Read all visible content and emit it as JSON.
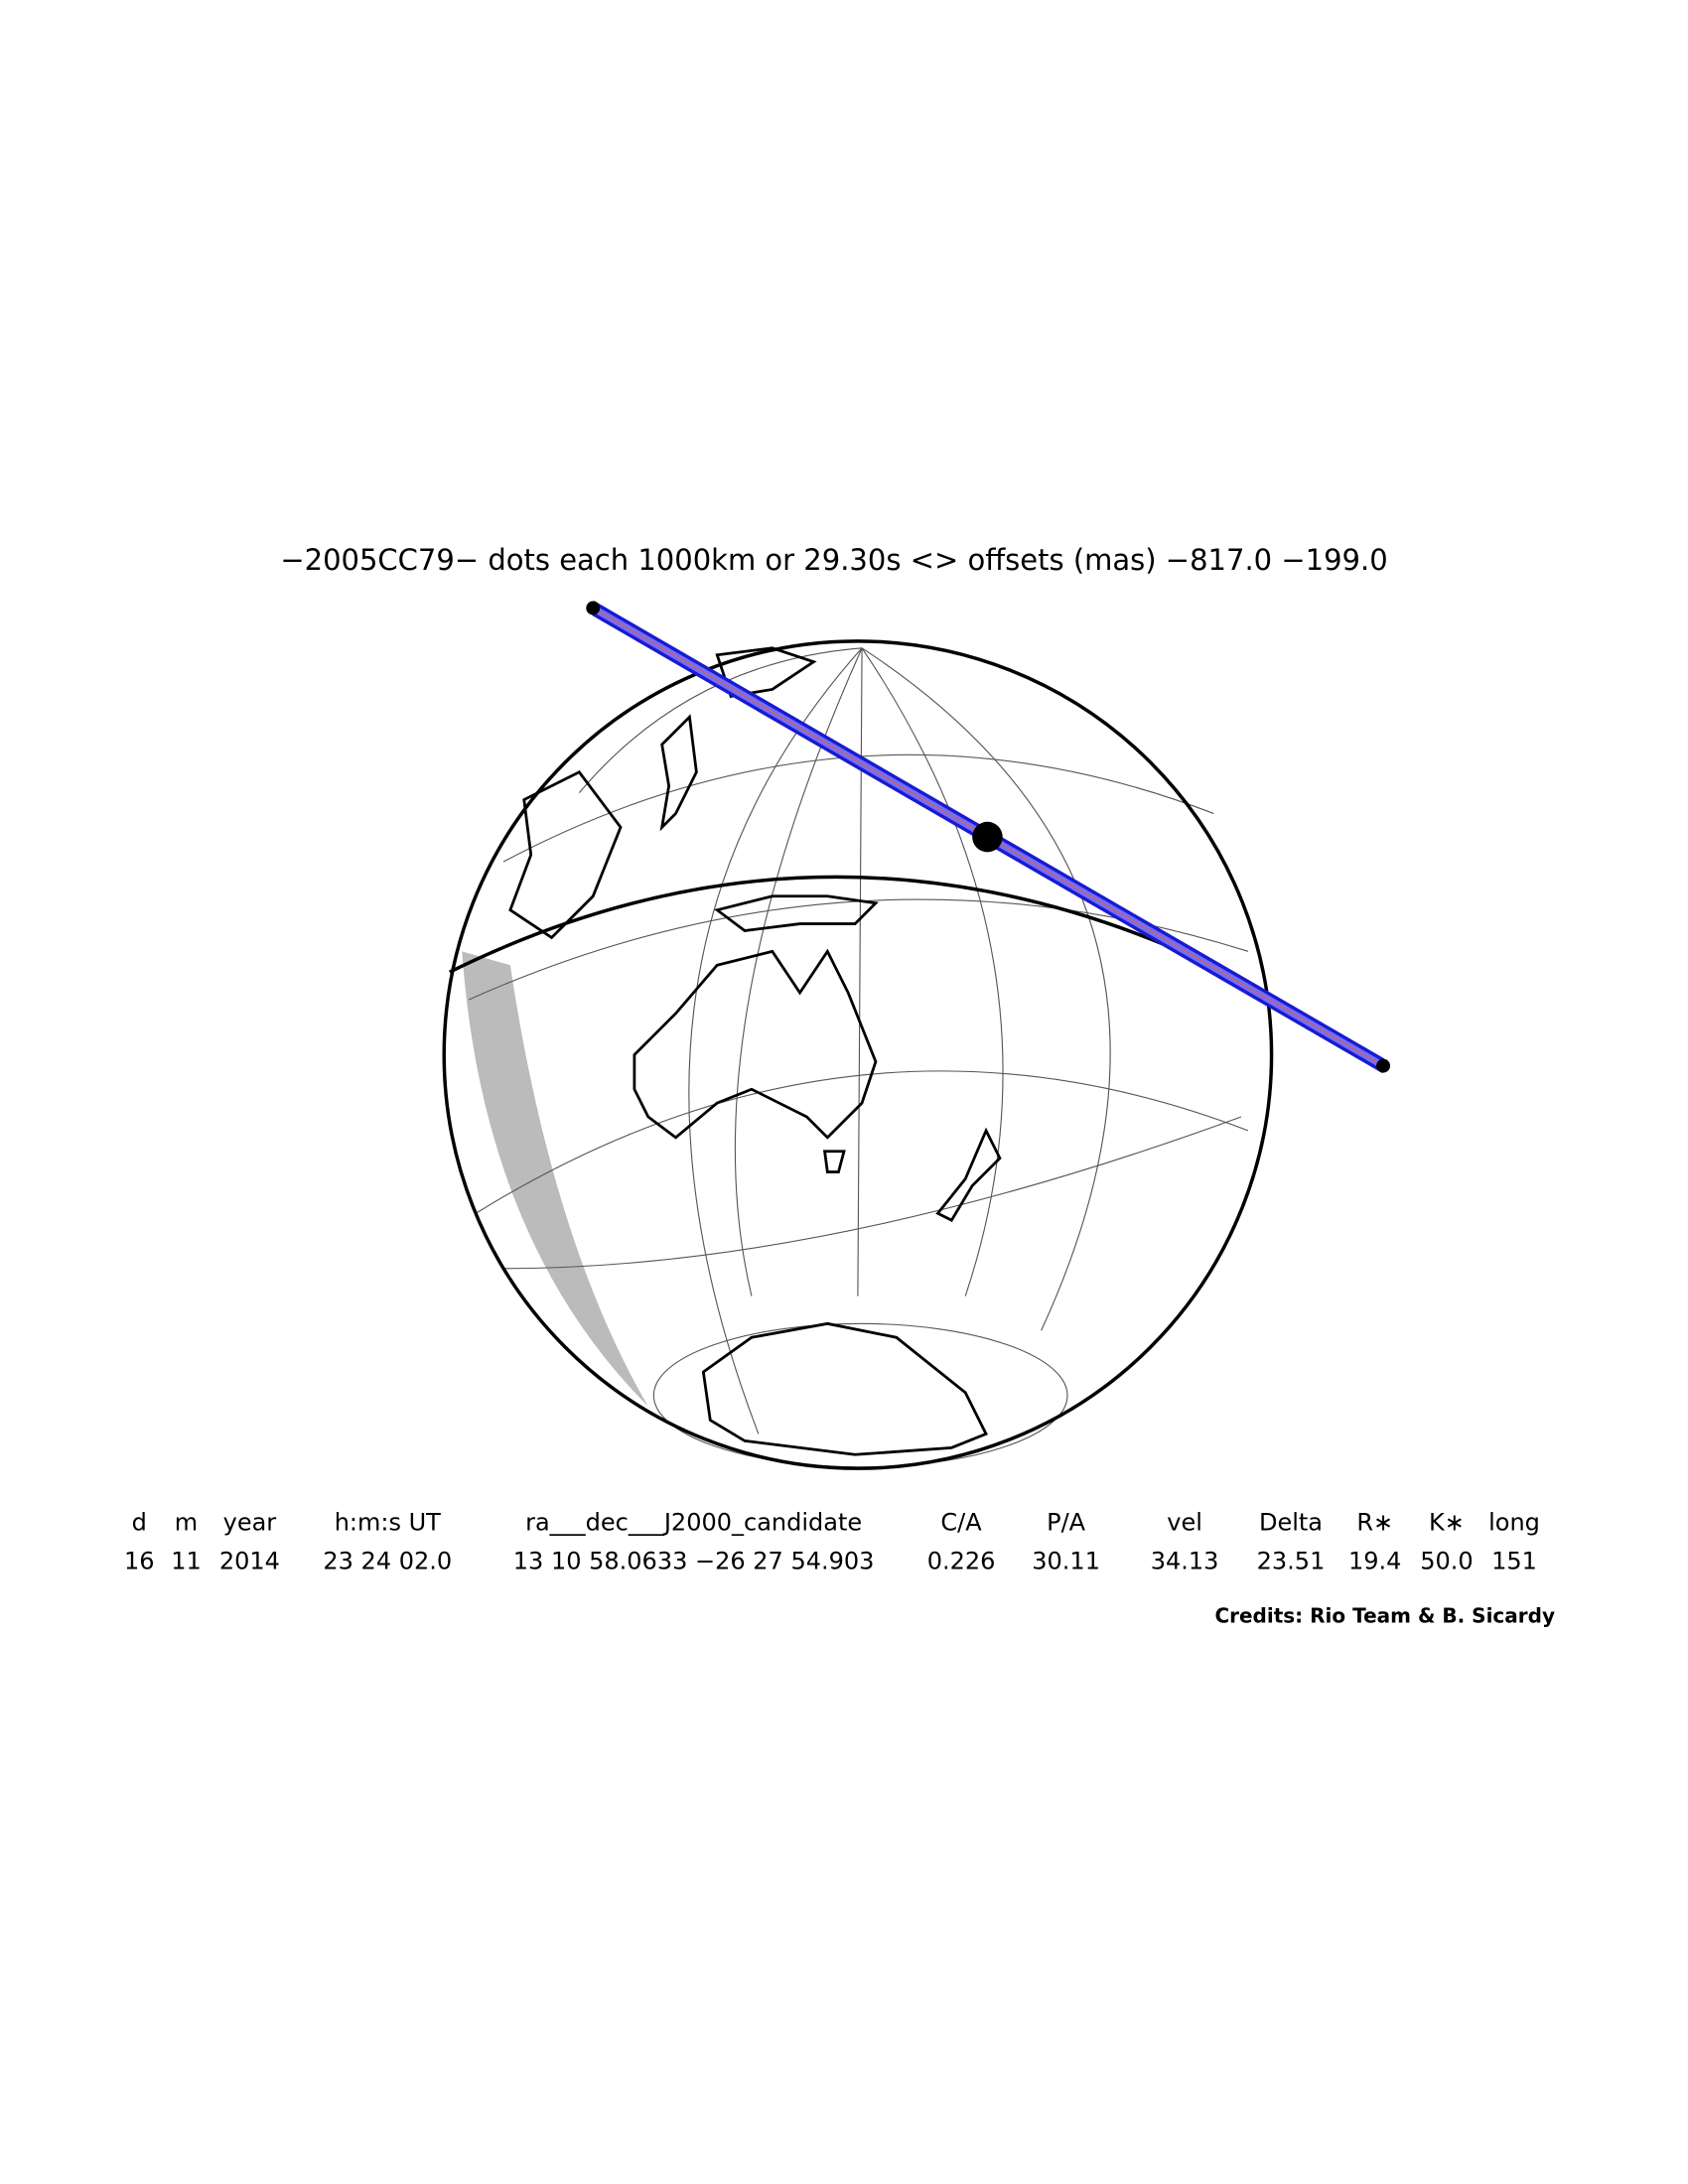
{
  "header": {
    "title": "−2005CC79− dots each 1000km or 29.30s <> offsets (mas) −817.0 −199.0"
  },
  "table": {
    "headers": [
      "d",
      "m",
      "year",
      "h:m:s UT",
      "ra___dec___J2000_candidate",
      "C/A",
      "P/A",
      "vel",
      "Delta",
      "R∗",
      "K∗",
      "long"
    ],
    "rows": [
      [
        "16",
        "11",
        "2014",
        "23 24 02.0",
        "13 10 58.0633 −26 27 54.903",
        "0.226",
        "30.11",
        "34.13",
        "23.51",
        "19.4",
        "50.0",
        "151"
      ]
    ]
  },
  "credits": "Credits: Rio Team & B. Sicardy"
}
